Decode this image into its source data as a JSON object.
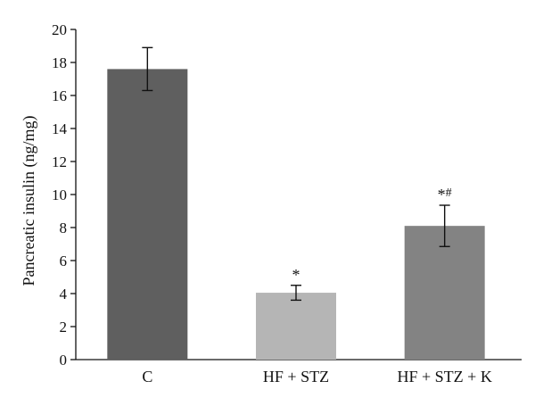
{
  "chart_data": {
    "type": "bar",
    "categories": [
      "C",
      "HF + STZ",
      "HF + STZ + K"
    ],
    "values": [
      17.6,
      4.05,
      8.1
    ],
    "errors": [
      1.3,
      0.45,
      1.25
    ],
    "annotations": [
      "",
      "*",
      "*#"
    ],
    "bar_colors": [
      "#5f5f5f",
      "#b5b5b5",
      "#838383"
    ],
    "xlabel": "",
    "ylabel": "Pancreatic insulin (ng/mg)",
    "ylim": [
      0,
      20
    ],
    "yticks": [
      0,
      2,
      4,
      6,
      8,
      10,
      12,
      14,
      16,
      18,
      20
    ],
    "grid": false
  }
}
